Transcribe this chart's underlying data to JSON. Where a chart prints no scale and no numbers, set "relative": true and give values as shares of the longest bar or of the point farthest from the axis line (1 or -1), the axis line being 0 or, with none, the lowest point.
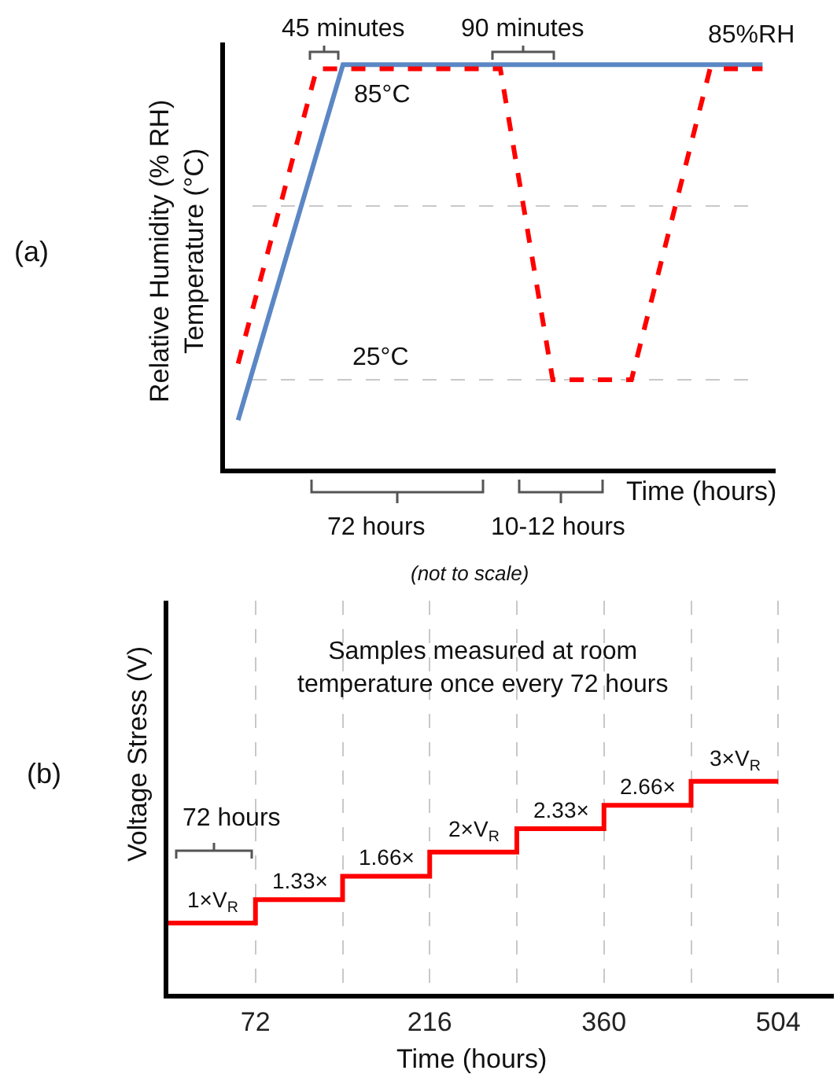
{
  "chart_data": [
    {
      "type": "line",
      "relative": true,
      "xlabel": "Time (hours)",
      "ylabel": "Relative Humidity (% RH)\nTemperature (°C)",
      "tick_labels": false,
      "categories": [
        null,
        null,
        null,
        null,
        null,
        null,
        null,
        null,
        null,
        null,
        null,
        null,
        null,
        null,
        null,
        null,
        null,
        null,
        null,
        null,
        null
      ],
      "series": [
        {
          "color": "#5b87c5",
          "line_style": "solid",
          "values": [
            0.12,
            null,
            null,
            null,
            1,
            null,
            null,
            null,
            null,
            null,
            null,
            null,
            null,
            null,
            null,
            null,
            null,
            null,
            null,
            null,
            1
          ]
        },
        {
          "color": "#ff0000",
          "line_style": "dashed",
          "values": [
            0.26,
            null,
            null,
            0.99,
            null,
            null,
            null,
            null,
            null,
            null,
            0.99,
            null,
            0.22,
            null,
            null,
            0.22,
            null,
            null,
            0.99,
            null,
            0.99
          ]
        }
      ],
      "ref_lines": [
        {
          "axis": "y",
          "value": 0.22,
          "label": "25°C",
          "color": "#c8c8c8",
          "line_style": "dashed"
        },
        {
          "axis": "y",
          "value": 0.65,
          "label": null,
          "color": "#c8c8c8",
          "line_style": "dashed"
        }
      ],
      "annotations": [
        "45 minutes",
        "90 minutes",
        "85%RH",
        "85°C",
        "72 hours",
        "10-12 hours",
        "(not to scale)",
        "(a)"
      ]
    },
    {
      "type": "step",
      "xlabel": "Time (hours)",
      "ylabel": "Voltage Stress (V)",
      "tick_labels": "x",
      "grid": "x",
      "xlim": [
        0,
        550
      ],
      "ylim": [
        0,
        5.55
      ],
      "xticks": [
        72,
        {
          "value": 144,
          "label": null
        },
        216,
        {
          "value": 288,
          "label": null
        },
        360,
        {
          "value": 432,
          "label": null
        },
        504
      ],
      "series": [
        {
          "color": "#ff0000",
          "x": [
            0,
            72,
            144,
            216,
            288,
            360,
            432,
            504
          ],
          "values": [
            1,
            1.33,
            1.66,
            2,
            2.33,
            2.66,
            3,
            3
          ],
          "value_labels": [
            "1×V$_{R}$",
            "1.33×",
            "1.66×",
            "2×V$_{R}$",
            "2.33×",
            "2.66×",
            "3×V$_{R}$",
            null
          ]
        }
      ],
      "annotations": [
        "Samples measured at room temperature once every 72 hours",
        "72 hours",
        "(b)"
      ]
    }
  ]
}
